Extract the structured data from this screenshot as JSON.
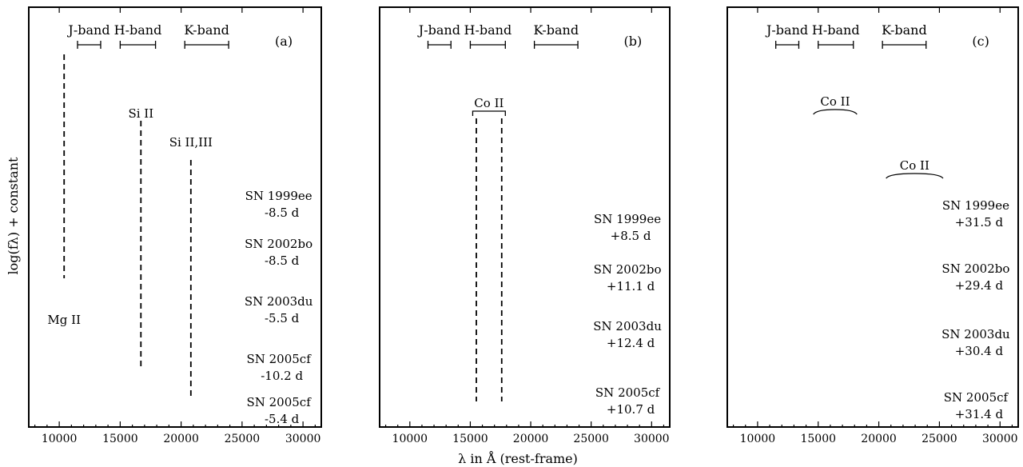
{
  "figure": {
    "ylabel": "log(fλ) + constant",
    "xlabel": "λ in Å (rest-frame)"
  },
  "colors": {
    "optical_like": "#c000c0",
    "sn2005cf": "#0000ee"
  },
  "chart_data": [
    {
      "type": "line",
      "panel_label": "(a)",
      "xlim": [
        7500,
        31500
      ],
      "xticks": [
        "10000",
        "15000",
        "20000",
        "25000",
        "30000"
      ],
      "band_labels": [
        "J-band",
        "H-band",
        "K-band"
      ],
      "markers": [
        {
          "label": "Mg II",
          "x": 10400
        },
        {
          "label": "Si II",
          "x": 16700
        },
        {
          "label": "Si II,III",
          "x": 20800
        }
      ],
      "series": [
        {
          "name": "SN 1999ee",
          "phase": "-8.5 d",
          "color": "#c000c0"
        },
        {
          "name": "SN 2002bo",
          "phase": "-8.5 d",
          "color": "#c000c0"
        },
        {
          "name": "SN 2003du",
          "phase": "-5.5 d",
          "color": "#c000c0"
        },
        {
          "name": "SN 2005cf",
          "phase": "-10.2 d",
          "color": "#0000ee"
        },
        {
          "name": "SN 2005cf",
          "phase": "-5.4 d",
          "color": "#0000ee"
        }
      ],
      "labels": [
        {
          "text": "SN 1999ee"
        },
        {
          "text": "-8.5 d"
        },
        {
          "text": "SN 2002bo"
        },
        {
          "text": "-8.5 d"
        },
        {
          "text": "SN 2003du"
        },
        {
          "text": "-5.5 d"
        },
        {
          "text": "SN 2005cf"
        },
        {
          "text": "-10.2 d"
        },
        {
          "text": "SN 2005cf"
        },
        {
          "text": "-5.4 d"
        }
      ]
    },
    {
      "type": "line",
      "panel_label": "(b)",
      "xlim": [
        7500,
        31500
      ],
      "xticks": [
        "10000",
        "15000",
        "20000",
        "25000",
        "30000"
      ],
      "band_labels": [
        "J-band",
        "H-band",
        "K-band"
      ],
      "markers": [
        {
          "label": "Co II",
          "x": 15500
        },
        {
          "label": "Co II",
          "x": 17600
        }
      ],
      "series": [
        {
          "name": "SN 1999ee",
          "phase": "+8.5 d",
          "color": "#c000c0"
        },
        {
          "name": "SN 2002bo",
          "phase": "+11.1 d",
          "color": "#c000c0"
        },
        {
          "name": "SN 2003du",
          "phase": "+12.4 d",
          "color": "#c000c0"
        },
        {
          "name": "SN 2005cf",
          "phase": "+10.7 d",
          "color": "#0000ee"
        }
      ],
      "labels": [
        {
          "text": "SN 1999ee"
        },
        {
          "text": "+8.5 d"
        },
        {
          "text": "SN 2002bo"
        },
        {
          "text": "+11.1 d"
        },
        {
          "text": "SN 2003du"
        },
        {
          "text": "+12.4 d"
        },
        {
          "text": "SN 2005cf"
        },
        {
          "text": "+10.7 d"
        }
      ]
    },
    {
      "type": "line",
      "panel_label": "(c)",
      "xlim": [
        7500,
        31500
      ],
      "xticks": [
        "10000",
        "15000",
        "20000",
        "25000",
        "30000"
      ],
      "band_labels": [
        "J-band",
        "H-band",
        "K-band"
      ],
      "co_labels": [
        "Co II",
        "Co II"
      ],
      "series": [
        {
          "name": "SN 1999ee",
          "phase": "+31.5 d",
          "color": "#c000c0"
        },
        {
          "name": "SN 2002bo",
          "phase": "+29.4 d",
          "color": "#c000c0"
        },
        {
          "name": "SN 2003du",
          "phase": "+30.4 d",
          "color": "#c000c0"
        },
        {
          "name": "SN 2005cf",
          "phase": "+31.4 d",
          "color": "#0000ee"
        }
      ],
      "labels": [
        {
          "text": "SN 1999ee"
        },
        {
          "text": "+31.5 d"
        },
        {
          "text": "SN 2002bo"
        },
        {
          "text": "+29.4 d"
        },
        {
          "text": "SN 2003du"
        },
        {
          "text": "+30.4 d"
        },
        {
          "text": "SN 2005cf"
        },
        {
          "text": "+31.4 d"
        }
      ]
    }
  ]
}
